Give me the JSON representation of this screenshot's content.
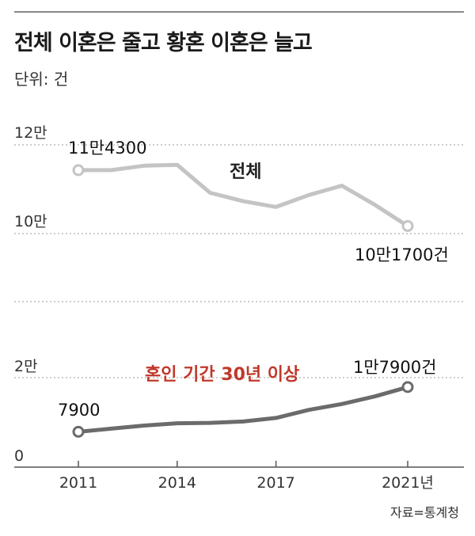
{
  "header": {
    "title": "전체 이혼은 줄고 황혼 이혼은 늘고",
    "unit": "단위: 건"
  },
  "source": "자료=통계청",
  "colors": {
    "total_line": "#c4c4c4",
    "gray_divorce_line": "#6b6b6b",
    "gray_divorce_label": "#c0392b",
    "grid": "#999999"
  },
  "chart_data": [
    {
      "type": "line",
      "x": [
        2011,
        2012,
        2013,
        2014,
        2015,
        2016,
        2017,
        2018,
        2019,
        2020,
        2021
      ],
      "series": [
        {
          "name": "전체",
          "values": [
            114300,
            114300,
            115300,
            115500,
            109200,
            107300,
            106000,
            108700,
            110800,
            106500,
            101700
          ]
        }
      ],
      "ytick_labels": [
        "10만",
        "12만"
      ],
      "ytick_values": [
        100000,
        120000
      ],
      "ylim": [
        95000,
        120000
      ],
      "annotations": [
        "11만4300",
        "10만1700건"
      ],
      "grid": true
    },
    {
      "type": "line",
      "x": [
        2011,
        2012,
        2013,
        2014,
        2015,
        2016,
        2017,
        2018,
        2019,
        2020,
        2021
      ],
      "series": [
        {
          "name": "혼인 기간 30년 이상",
          "values": [
            7900,
            8600,
            9300,
            9800,
            9900,
            10200,
            11000,
            12800,
            14100,
            15800,
            17900
          ]
        }
      ],
      "xtick_labels": [
        "2011",
        "2014",
        "2017",
        "2021년"
      ],
      "xtick_values": [
        2011,
        2014,
        2017,
        2021
      ],
      "ytick_labels": [
        "0",
        "2만"
      ],
      "ytick_values": [
        0,
        20000
      ],
      "ylim": [
        0,
        40000
      ],
      "annotations": [
        "7900",
        "1만7900건"
      ],
      "grid": true
    }
  ]
}
